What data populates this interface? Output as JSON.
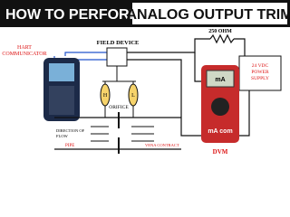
{
  "title": {
    "part1": "HOW TO PERFORM",
    "part2": "ANALOG OUTPUT TRIM"
  },
  "labels": {
    "hart": [
      "HART",
      "COMMUNICATOR"
    ],
    "field_device": "FIELD DEVICE",
    "resistor": "250 OHM",
    "power": [
      "24 VDC",
      "POWER",
      "SUPPLY"
    ],
    "high": "H",
    "low": "L",
    "orifice": "ORIFICE",
    "flow": [
      "DIRECTION OF",
      "FLOW"
    ],
    "pipe": "PIPE",
    "vena": "VENA CONTRACT",
    "dvm": "DVM",
    "meter_unit": "mA",
    "meter_jacks": "mA  com"
  }
}
